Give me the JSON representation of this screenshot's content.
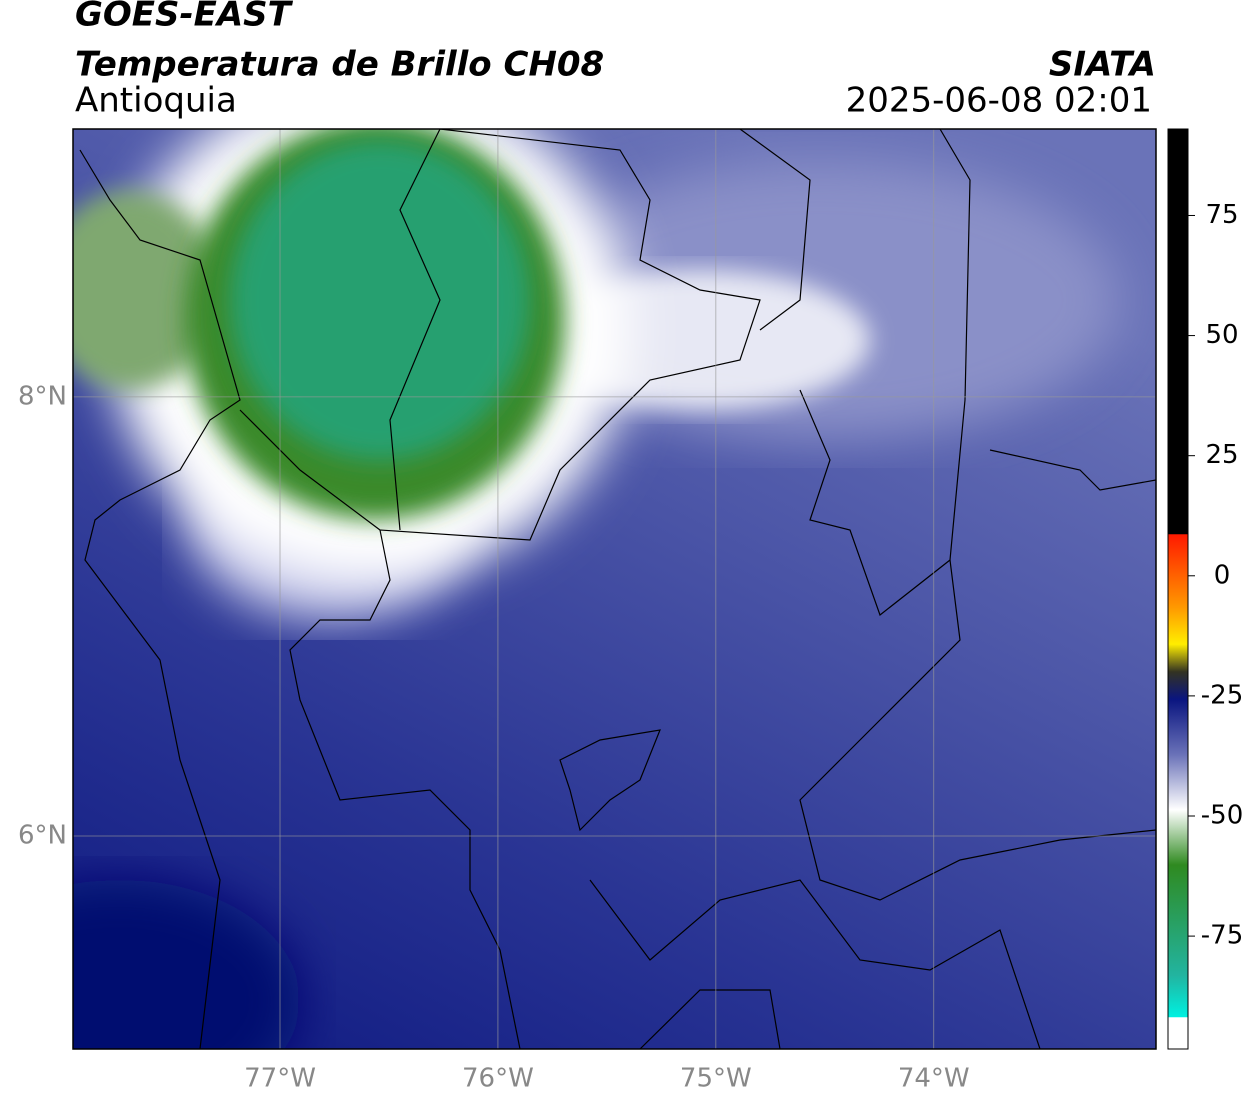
{
  "header": {
    "title": "GOES-EAST",
    "subtitle": "Temperatura de Brillo CH08",
    "region": "Antioquia",
    "source": "SIATA",
    "timestamp": "2025-06-08 02:01"
  },
  "map": {
    "latlim": [
      5.03,
      9.22
    ],
    "lonlim": [
      -77.95,
      -72.98
    ],
    "lat_ticks": [
      {
        "value": 8,
        "label": "8°N"
      },
      {
        "value": 6,
        "label": "6°N"
      }
    ],
    "lon_ticks": [
      {
        "value": -77,
        "label": "77°W"
      },
      {
        "value": -76,
        "label": "76°W"
      },
      {
        "value": -75,
        "label": "75°W"
      },
      {
        "value": -74,
        "label": "74°W"
      }
    ],
    "grid": true
  },
  "colorbar": {
    "lim": [
      -98.5,
      93
    ],
    "ticks": [
      75,
      50,
      25,
      0,
      -25,
      -50,
      -75
    ]
  }
}
